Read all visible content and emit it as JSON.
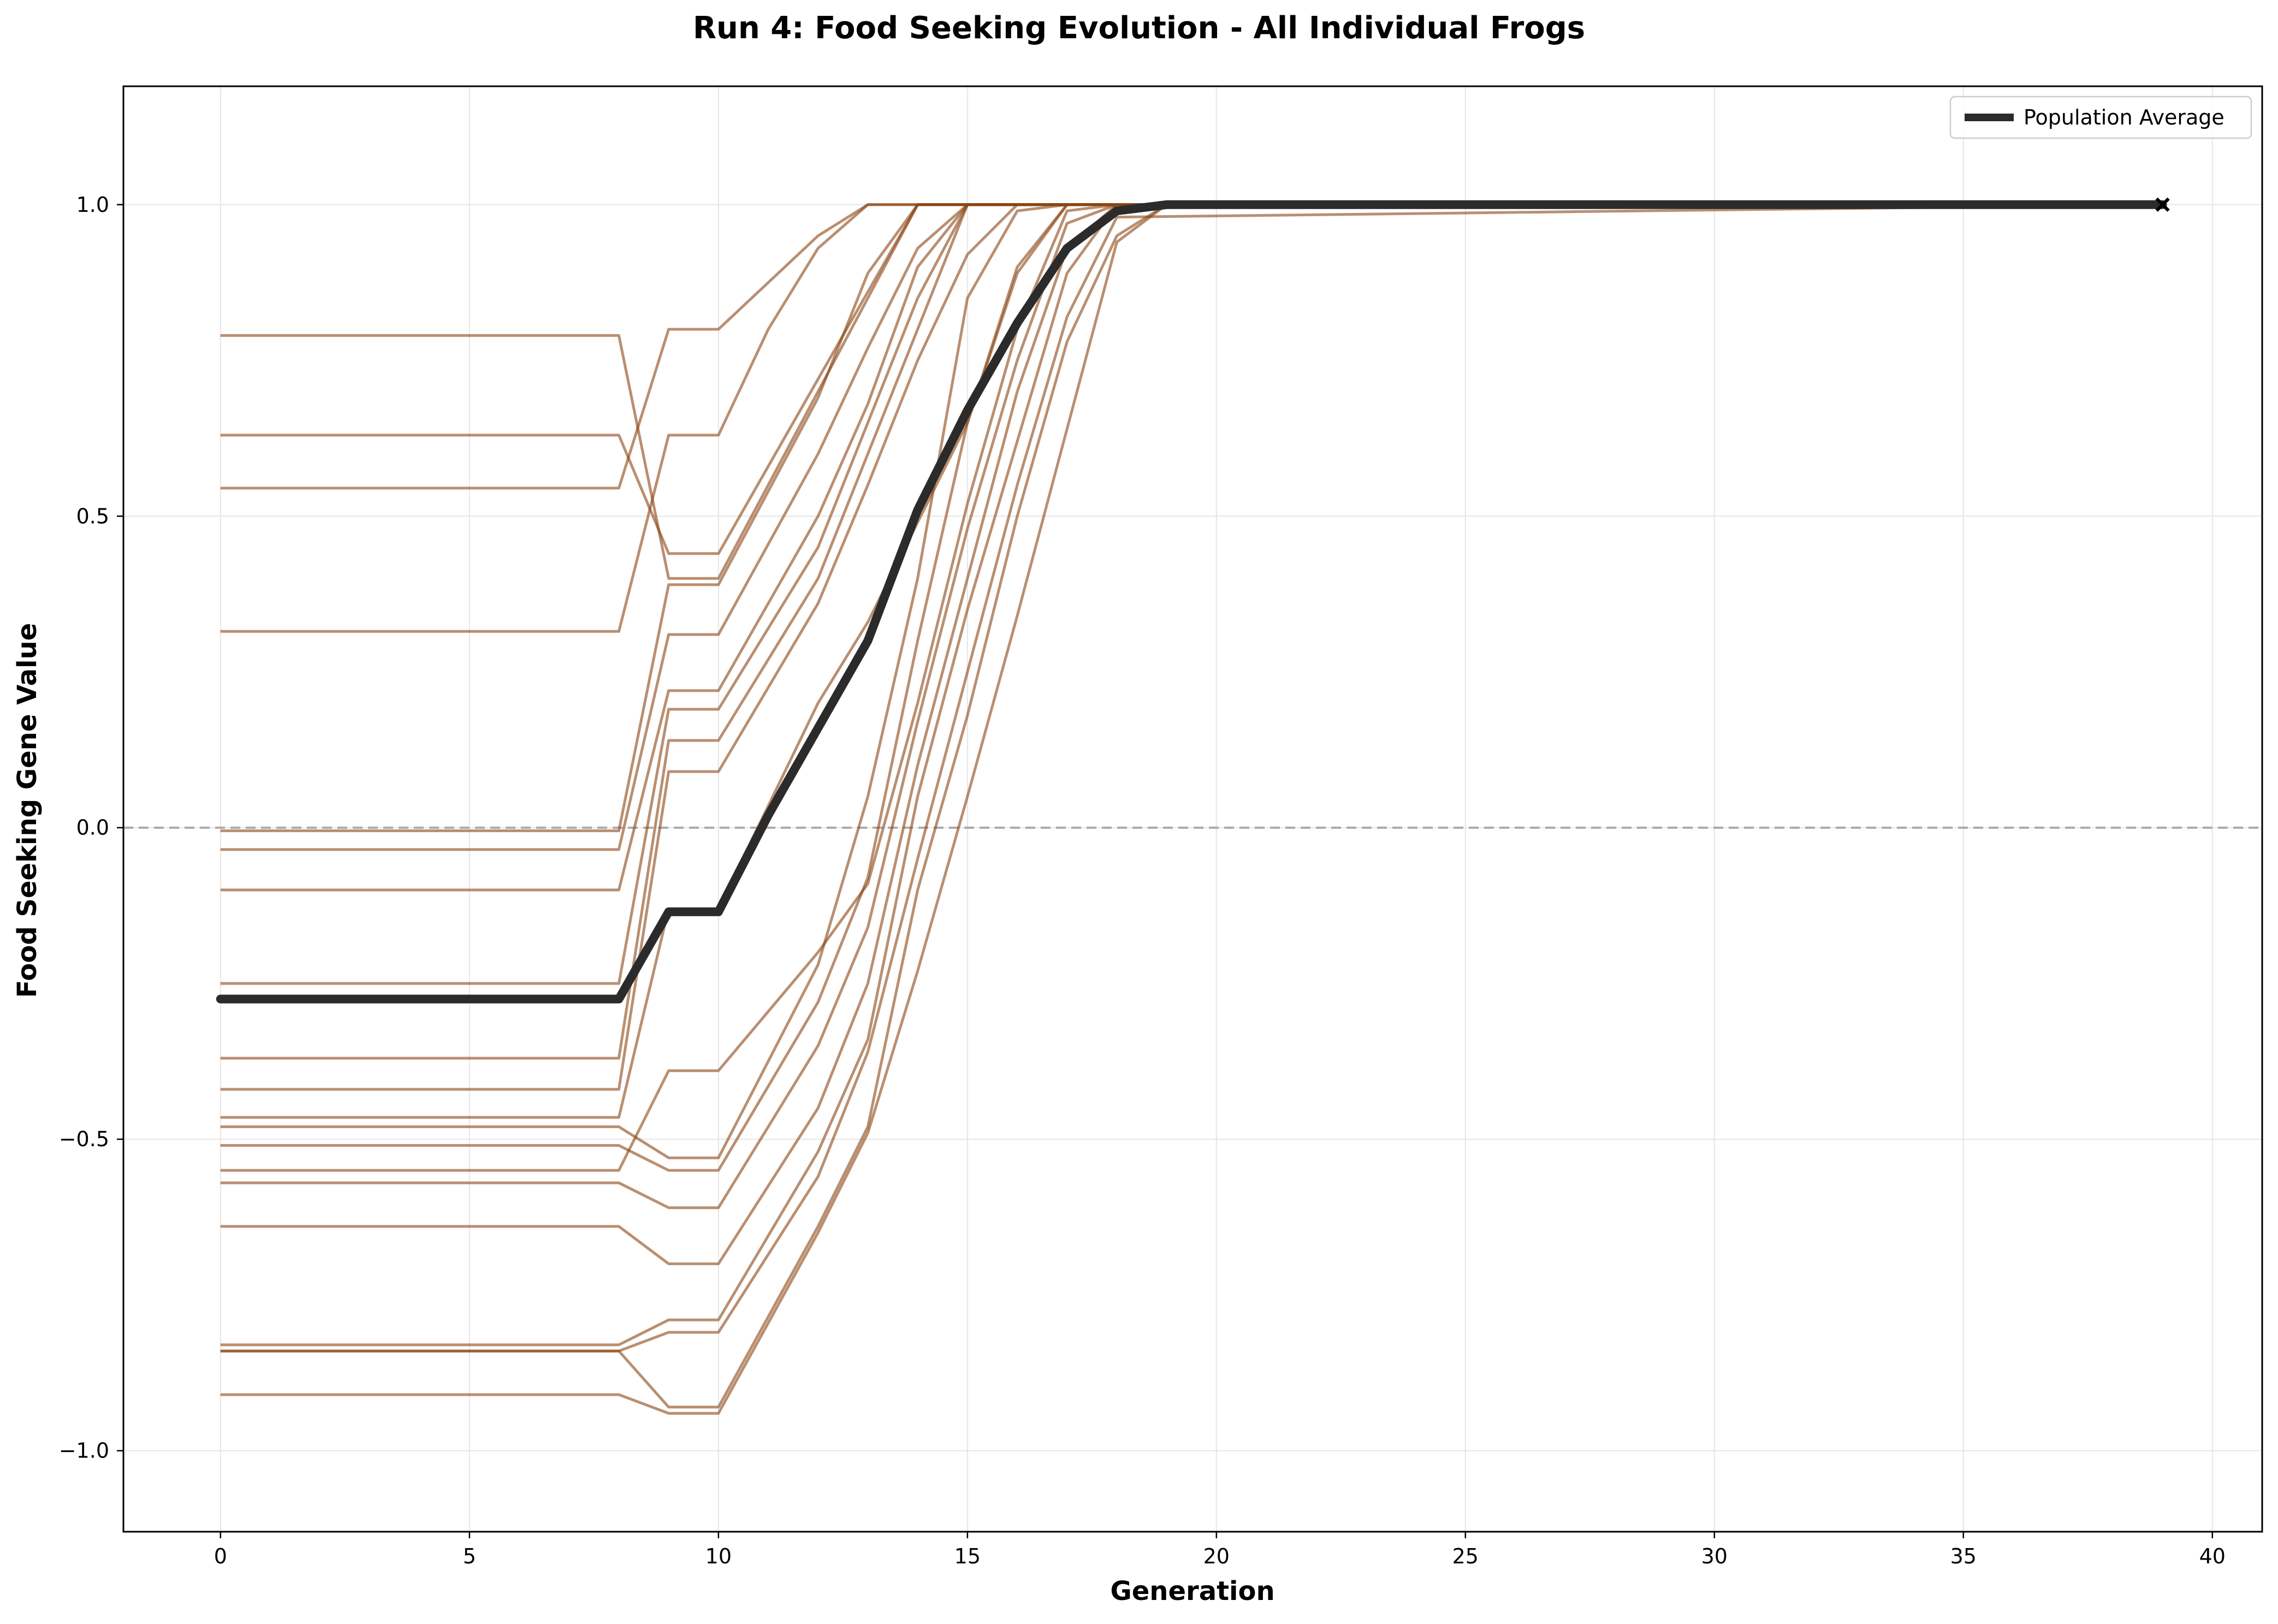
{
  "chart_data": {
    "type": "line",
    "title": "Run 4: Food Seeking Evolution - All Individual Frogs",
    "xlabel": "Generation",
    "ylabel": "Food Seeking Gene Value",
    "xlim": [
      -1.95,
      41.0
    ],
    "ylim": [
      -1.13,
      1.19
    ],
    "xticks": [
      0,
      5,
      10,
      15,
      20,
      25,
      30,
      35,
      40
    ],
    "xtick_labels": [
      "0",
      "5",
      "10",
      "15",
      "20",
      "25",
      "30",
      "35",
      "40"
    ],
    "yticks": [
      -1.0,
      -0.5,
      0.0,
      0.5,
      1.0
    ],
    "ytick_labels": [
      "−1.0",
      "−0.5",
      "0.0",
      "0.5",
      "1.0"
    ],
    "grid": true,
    "reference_line": {
      "y": 0.0,
      "style": "dashed",
      "color": "#aaaaaa"
    },
    "legend": {
      "position": "top-right",
      "entries": [
        "Population Average"
      ]
    },
    "individual_color": "#8B4513",
    "average": {
      "name": "Population Average",
      "color": "#2b2b2b",
      "x": [
        0,
        8,
        9,
        10,
        11,
        12,
        13,
        14,
        15,
        16,
        17,
        18,
        19,
        20,
        39
      ],
      "y": [
        -0.275,
        -0.275,
        -0.135,
        -0.135,
        0.02,
        0.16,
        0.3,
        0.51,
        0.67,
        0.81,
        0.93,
        0.99,
        1.0,
        1.0,
        1.0
      ]
    },
    "average_end_marker": {
      "x": 39,
      "y": 1.0,
      "symbol": "x"
    },
    "individuals": [
      {
        "x": [
          0,
          8,
          9,
          10,
          12,
          14,
          15,
          39
        ],
        "y": [
          0.79,
          0.79,
          0.4,
          0.4,
          0.7,
          1.0,
          1.0,
          1.0
        ]
      },
      {
        "x": [
          0,
          8,
          9,
          10,
          12,
          14,
          15,
          39
        ],
        "y": [
          0.63,
          0.63,
          0.44,
          0.44,
          0.72,
          1.0,
          1.0,
          1.0
        ]
      },
      {
        "x": [
          0,
          8,
          9,
          10,
          12,
          13,
          39
        ],
        "y": [
          0.545,
          0.545,
          0.8,
          0.8,
          0.95,
          1.0,
          1.0
        ]
      },
      {
        "x": [
          0,
          8,
          9,
          10,
          11,
          12,
          13,
          39
        ],
        "y": [
          0.315,
          0.315,
          0.63,
          0.63,
          0.8,
          0.93,
          1.0,
          1.0
        ]
      },
      {
        "x": [
          0,
          8,
          9,
          10,
          12,
          13,
          14,
          39
        ],
        "y": [
          -0.005,
          -0.005,
          0.39,
          0.39,
          0.69,
          0.89,
          1.0,
          1.0
        ]
      },
      {
        "x": [
          0,
          8,
          9,
          10,
          12,
          13,
          14,
          15,
          39
        ],
        "y": [
          -0.035,
          -0.035,
          0.31,
          0.31,
          0.6,
          0.77,
          0.93,
          1.0,
          1.0
        ]
      },
      {
        "x": [
          0,
          8,
          9,
          10,
          12,
          13,
          14,
          15,
          39
        ],
        "y": [
          -0.1,
          -0.1,
          0.22,
          0.22,
          0.5,
          0.68,
          0.9,
          1.0,
          1.0
        ]
      },
      {
        "x": [
          0,
          8,
          9,
          10,
          12,
          13,
          14,
          15,
          39
        ],
        "y": [
          -0.25,
          -0.25,
          0.19,
          0.19,
          0.45,
          0.65,
          0.85,
          1.0,
          1.0
        ]
      },
      {
        "x": [
          0,
          8,
          9,
          10,
          12,
          13,
          14,
          15,
          39
        ],
        "y": [
          -0.37,
          -0.37,
          0.14,
          0.14,
          0.4,
          0.6,
          0.8,
          1.0,
          1.0
        ]
      },
      {
        "x": [
          0,
          8,
          9,
          10,
          12,
          13,
          14,
          15,
          16,
          39
        ],
        "y": [
          -0.42,
          -0.42,
          0.09,
          0.09,
          0.36,
          0.55,
          0.75,
          0.92,
          1.0,
          1.0
        ]
      },
      {
        "x": [
          0,
          8,
          9,
          10,
          12,
          13,
          15,
          16,
          17,
          39
        ],
        "y": [
          -0.465,
          -0.465,
          -0.13,
          -0.13,
          0.2,
          0.33,
          0.65,
          0.89,
          1.0,
          1.0
        ]
      },
      {
        "x": [
          0,
          8,
          9,
          10,
          12,
          13,
          14,
          15,
          16,
          17,
          39
        ],
        "y": [
          -0.48,
          -0.48,
          -0.53,
          -0.53,
          -0.22,
          0.05,
          0.4,
          0.85,
          0.99,
          1.0,
          1.0
        ]
      },
      {
        "x": [
          0,
          8,
          9,
          10,
          12,
          13,
          14,
          15,
          16,
          17,
          39
        ],
        "y": [
          -0.51,
          -0.51,
          -0.55,
          -0.55,
          -0.28,
          -0.08,
          0.3,
          0.65,
          0.9,
          1.0,
          1.0
        ]
      },
      {
        "x": [
          0,
          8,
          9,
          10,
          12,
          13,
          14,
          15,
          16,
          17,
          18,
          39
        ],
        "y": [
          -0.55,
          -0.55,
          -0.39,
          -0.39,
          -0.2,
          -0.09,
          0.2,
          0.52,
          0.8,
          0.99,
          1.0,
          1.0
        ]
      },
      {
        "x": [
          0,
          8,
          9,
          10,
          12,
          13,
          14,
          15,
          16,
          17,
          18,
          39
        ],
        "y": [
          -0.57,
          -0.57,
          -0.61,
          -0.61,
          -0.35,
          -0.16,
          0.17,
          0.48,
          0.75,
          0.97,
          1.0,
          1.0
        ]
      },
      {
        "x": [
          0,
          8,
          9,
          10,
          12,
          13,
          14,
          15,
          16,
          17,
          18,
          39
        ],
        "y": [
          -0.64,
          -0.64,
          -0.7,
          -0.7,
          -0.45,
          -0.25,
          0.1,
          0.4,
          0.7,
          0.93,
          1.0,
          1.0
        ]
      },
      {
        "x": [
          0,
          8,
          9,
          10,
          12,
          13,
          14,
          15,
          16,
          17,
          18,
          39
        ],
        "y": [
          -0.83,
          -0.83,
          -0.79,
          -0.79,
          -0.52,
          -0.34,
          0.05,
          0.35,
          0.62,
          0.89,
          1.0,
          1.0
        ]
      },
      {
        "x": [
          0,
          8,
          9,
          10,
          12,
          13,
          14,
          15,
          16,
          17,
          18,
          39
        ],
        "y": [
          -0.84,
          -0.84,
          -0.81,
          -0.81,
          -0.56,
          -0.36,
          -0.05,
          0.25,
          0.55,
          0.82,
          0.98,
          1.0
        ]
      },
      {
        "x": [
          0,
          8,
          9,
          10,
          12,
          13,
          14,
          15,
          16,
          17,
          18,
          19,
          39
        ],
        "y": [
          -0.84,
          -0.84,
          -0.93,
          -0.93,
          -0.64,
          -0.48,
          -0.1,
          0.18,
          0.5,
          0.78,
          0.95,
          1.0,
          1.0
        ]
      },
      {
        "x": [
          0,
          8,
          9,
          10,
          12,
          13,
          14,
          15,
          16,
          17,
          18,
          19,
          39
        ],
        "y": [
          -0.91,
          -0.91,
          -0.94,
          -0.94,
          -0.65,
          -0.49,
          -0.23,
          0.05,
          0.34,
          0.64,
          0.94,
          1.0,
          1.0
        ]
      }
    ]
  }
}
